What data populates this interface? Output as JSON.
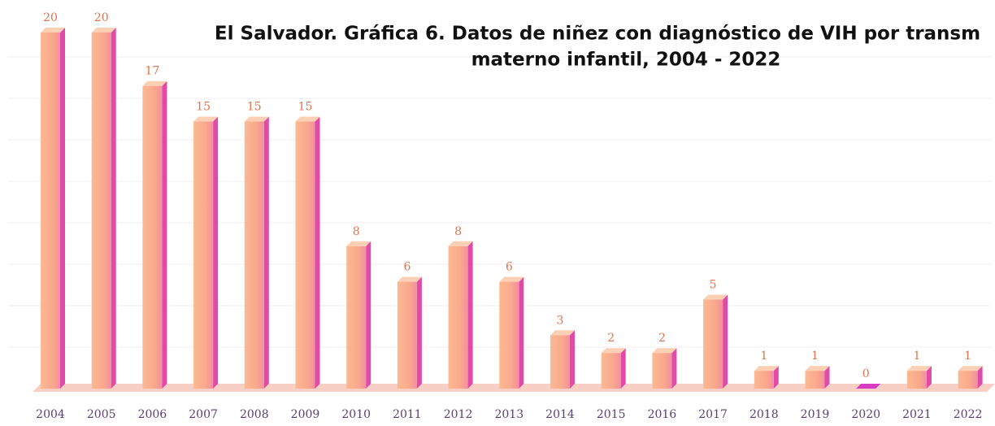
{
  "chart_data": {
    "type": "bar",
    "title": [
      "El Salvador. Gráfica 6. Datos de niñez con diagnóstico de VIH por transm",
      "materno infantil, 2004 - 2022"
    ],
    "categories": [
      "2004",
      "2005",
      "2006",
      "2007",
      "2008",
      "2009",
      "2010",
      "2011",
      "2012",
      "2013",
      "2014",
      "2015",
      "2016",
      "2017",
      "2018",
      "2019",
      "2020",
      "2021",
      "2022"
    ],
    "values": [
      20,
      20,
      17,
      15,
      15,
      15,
      8,
      6,
      8,
      6,
      3,
      2,
      2,
      5,
      1,
      1,
      0,
      1,
      1
    ],
    "color": "#f9b08c",
    "ylim": [
      0,
      20
    ]
  }
}
